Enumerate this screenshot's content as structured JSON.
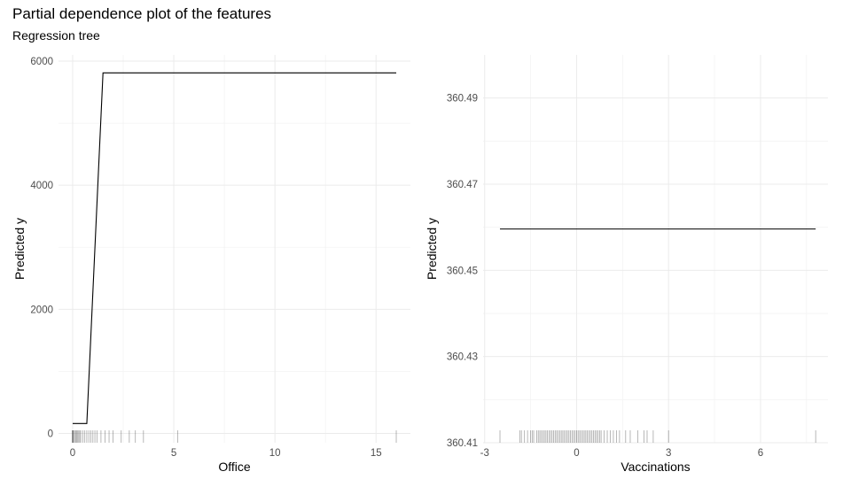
{
  "title": "Partial dependence plot of the features",
  "subtitle": "Regression tree",
  "chart_data": [
    {
      "type": "line",
      "xlabel": "Office",
      "ylabel": "Predicted y",
      "xlim": [
        -0.7,
        16.7
      ],
      "ylim": [
        -150,
        6100
      ],
      "xticks": [
        0,
        5,
        10,
        15
      ],
      "xtick_labels": [
        "0",
        "5",
        "10",
        "15"
      ],
      "yticks": [
        0,
        2000,
        4000,
        6000
      ],
      "ytick_labels": [
        "0",
        "2000",
        "4000",
        "6000"
      ],
      "grid": true,
      "series": [
        {
          "x": [
            0,
            0.7,
            1.5,
            16
          ],
          "y": [
            160,
            160,
            5810,
            5810
          ]
        }
      ],
      "rug": [
        0,
        0,
        0,
        0,
        0,
        0.05,
        0.1,
        0.15,
        0.2,
        0.25,
        0.3,
        0.35,
        0.4,
        0.5,
        0.6,
        0.7,
        0.8,
        0.9,
        1.0,
        1.1,
        1.2,
        1.4,
        1.6,
        1.8,
        2.0,
        2.4,
        2.8,
        3.1,
        3.5,
        5.2,
        16.0
      ]
    },
    {
      "type": "line",
      "xlabel": "Vaccinations",
      "ylabel": "Predicted y",
      "xlim": [
        -3.05,
        8.2
      ],
      "ylim": [
        360.41,
        360.5
      ],
      "xticks": [
        -3,
        0,
        3,
        6
      ],
      "xtick_labels": [
        "-3",
        "0",
        "3",
        "6"
      ],
      "yticks": [
        360.41,
        360.43,
        360.45,
        360.47,
        360.49
      ],
      "ytick_labels": [
        "360.41",
        "360.43",
        "360.45",
        "360.47",
        "360.49"
      ],
      "grid": true,
      "series": [
        {
          "x": [
            -2.5,
            7.8
          ],
          "y": [
            360.4596,
            360.4596
          ]
        }
      ],
      "rug": [
        -2.5,
        -1.85,
        -1.8,
        -1.7,
        -1.6,
        -1.5,
        -1.45,
        -1.4,
        -1.3,
        -1.25,
        -1.2,
        -1.15,
        -1.1,
        -1.05,
        -1.0,
        -0.95,
        -0.9,
        -0.85,
        -0.8,
        -0.75,
        -0.7,
        -0.65,
        -0.6,
        -0.55,
        -0.5,
        -0.45,
        -0.4,
        -0.35,
        -0.3,
        -0.25,
        -0.2,
        -0.15,
        -0.1,
        -0.05,
        0,
        0.05,
        0.1,
        0.15,
        0.2,
        0.25,
        0.3,
        0.35,
        0.4,
        0.45,
        0.5,
        0.55,
        0.6,
        0.65,
        0.7,
        0.75,
        0.8,
        0.9,
        1.0,
        1.1,
        1.2,
        1.3,
        1.4,
        1.6,
        1.75,
        2.0,
        2.2,
        2.3,
        2.5,
        3.0,
        7.8
      ]
    }
  ]
}
